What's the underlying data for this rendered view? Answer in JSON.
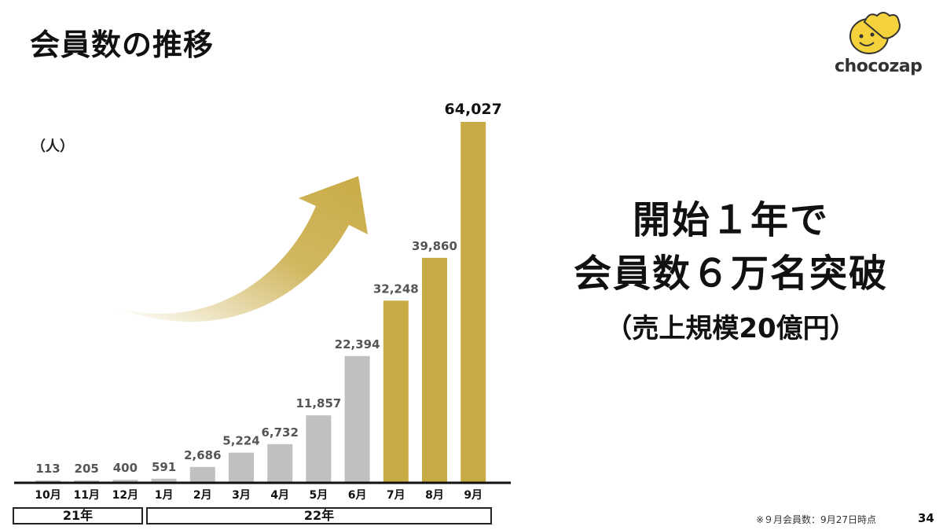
{
  "header": {
    "title": "会員数の推移"
  },
  "logo": {
    "text": "chocozap",
    "icon": "smiling-face-hand-logo"
  },
  "chart_data": {
    "type": "bar",
    "unit_label": "（人）",
    "categories": [
      "10月",
      "11月",
      "12月",
      "1月",
      "2月",
      "3月",
      "4月",
      "5月",
      "6月",
      "7月",
      "8月",
      "9月"
    ],
    "values": [
      113,
      205,
      400,
      591,
      2686,
      5224,
      6732,
      11857,
      22394,
      32248,
      39860,
      64027
    ],
    "value_labels": [
      "113",
      "205",
      "400",
      "591",
      "2,686",
      "5,224",
      "6,732",
      "11,857",
      "22,394",
      "32,248",
      "39,860",
      "64,027"
    ],
    "highlight_from_index": 9,
    "colors": {
      "base": "#c0c0c0",
      "highlight": "#c9ab45",
      "arrow": "#c9ab45"
    },
    "year_groups": [
      {
        "label": "21年",
        "start": 0,
        "end": 2
      },
      {
        "label": "22年",
        "start": 3,
        "end": 11
      }
    ],
    "ylim": [
      0,
      64027
    ],
    "grid": false,
    "legend": "none"
  },
  "headline": {
    "line1": "開始１年で",
    "line2": "会員数６万名突破",
    "line3": "（売上規模20億円）"
  },
  "footer": {
    "note": "※９月会員数：9月27日時点",
    "page_number": "34"
  }
}
